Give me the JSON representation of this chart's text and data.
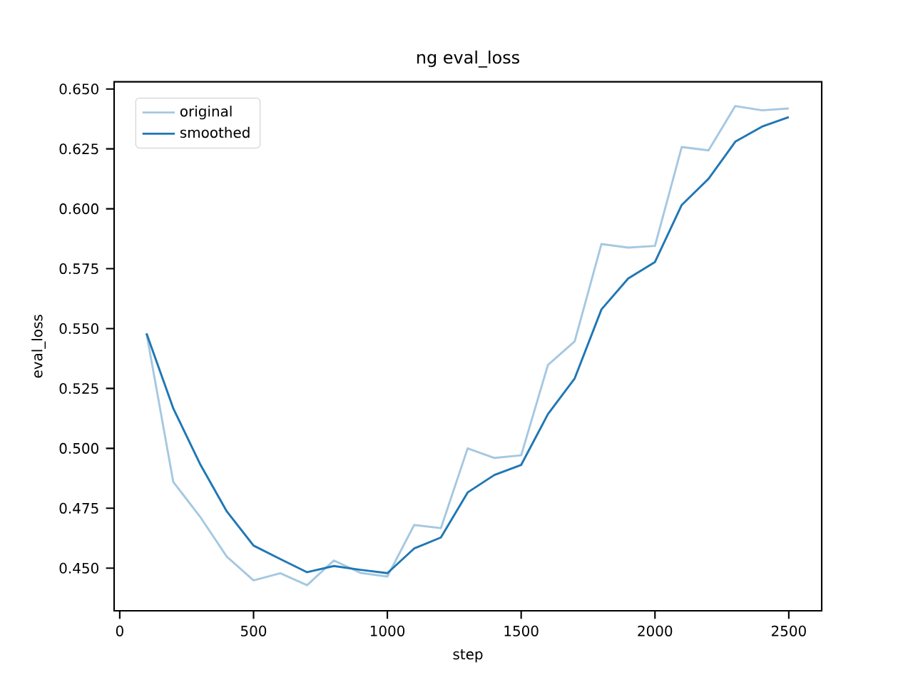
{
  "chart_data": {
    "type": "line",
    "title": "ng eval_loss",
    "xlabel": "step",
    "ylabel": "eval_loss",
    "x": [
      100,
      200,
      300,
      400,
      500,
      600,
      700,
      800,
      900,
      1000,
      1100,
      1200,
      1300,
      1400,
      1500,
      1600,
      1700,
      1800,
      1900,
      2000,
      2100,
      2200,
      2300,
      2400,
      2500
    ],
    "series": [
      {
        "name": "original",
        "color": "#a5c8e1",
        "values": [
          0.548,
          0.486,
          0.4715,
          0.4548,
          0.4449,
          0.4479,
          0.4429,
          0.4532,
          0.448,
          0.4465,
          0.468,
          0.4667,
          0.5,
          0.496,
          0.4971,
          0.5348,
          0.5447,
          0.5853,
          0.5838,
          0.5845,
          0.6258,
          0.6244,
          0.6429,
          0.6411,
          0.6419
        ]
      },
      {
        "name": "smoothed",
        "color": "#1f77b4",
        "values": [
          0.548,
          0.5167,
          0.4935,
          0.4737,
          0.4594,
          0.4538,
          0.4483,
          0.4509,
          0.4493,
          0.4479,
          0.4582,
          0.4628,
          0.4816,
          0.4889,
          0.4931,
          0.5143,
          0.5292,
          0.558,
          0.5709,
          0.5778,
          0.6016,
          0.6125,
          0.628,
          0.6343,
          0.6383
        ]
      }
    ],
    "xlim": [
      -21,
      2623
    ],
    "ylim": [
      0.4322,
      0.653
    ],
    "xticks": [
      0,
      500,
      1000,
      1500,
      2000,
      2500
    ],
    "yticks": [
      {
        "value": 0.45,
        "label": "0.450"
      },
      {
        "value": 0.475,
        "label": "0.475"
      },
      {
        "value": 0.5,
        "label": "0.500"
      },
      {
        "value": 0.525,
        "label": "0.525"
      },
      {
        "value": 0.55,
        "label": "0.550"
      },
      {
        "value": 0.575,
        "label": "0.575"
      },
      {
        "value": 0.6,
        "label": "0.600"
      },
      {
        "value": 0.625,
        "label": "0.625"
      },
      {
        "value": 0.65,
        "label": "0.650"
      }
    ],
    "legend": "top left",
    "grid": false,
    "marker": "none",
    "line_style": "solid"
  }
}
